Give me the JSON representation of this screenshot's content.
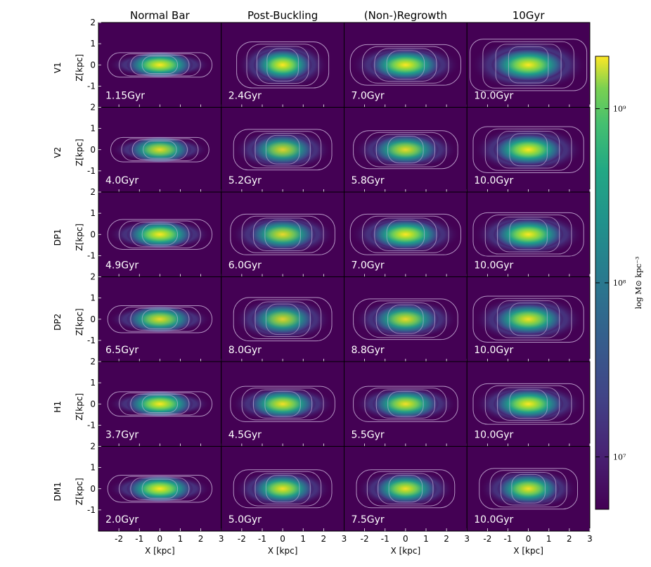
{
  "chart_data": {
    "type": "heatmap",
    "description_of_grid": "6 rows (models) x 4 columns (phases) of edge-on density maps with contours",
    "columns": [
      "Normal Bar",
      "Post-Buckling",
      "(Non-)Regrowth",
      "10Gyr"
    ],
    "rows": [
      {
        "label": "V1",
        "times": [
          "1.15Gyr",
          "2.4Gyr",
          "7.0Gyr",
          "10.0Gyr"
        ]
      },
      {
        "label": "V2",
        "times": [
          "4.0Gyr",
          "5.2Gyr",
          "5.8Gyr",
          "10.0Gyr"
        ]
      },
      {
        "label": "DP1",
        "times": [
          "4.9Gyr",
          "6.0Gyr",
          "7.0Gyr",
          "10.0Gyr"
        ]
      },
      {
        "label": "DP2",
        "times": [
          "6.5Gyr",
          "8.0Gyr",
          "8.8Gyr",
          "10.0Gyr"
        ]
      },
      {
        "label": "H1",
        "times": [
          "3.7Gyr",
          "4.5Gyr",
          "5.5Gyr",
          "10.0Gyr"
        ]
      },
      {
        "label": "DM1",
        "times": [
          "2.0Gyr",
          "5.0Gyr",
          "7.5Gyr",
          "10.0Gyr"
        ]
      }
    ],
    "panel_shapes": [
      [
        {
          "w": 0.85,
          "h": 0.45,
          "peak": 1.0,
          "box": 0.0
        },
        {
          "w": 0.75,
          "h": 0.85,
          "peak": 1.0,
          "box": 0.6
        },
        {
          "w": 0.9,
          "h": 0.75,
          "peak": 1.0,
          "box": 0.3
        },
        {
          "w": 0.95,
          "h": 0.95,
          "peak": 1.0,
          "box": 0.9
        }
      ],
      [
        {
          "w": 0.8,
          "h": 0.45,
          "peak": 0.9,
          "box": 0.0
        },
        {
          "w": 0.8,
          "h": 0.75,
          "peak": 0.85,
          "box": 0.5
        },
        {
          "w": 0.85,
          "h": 0.7,
          "peak": 0.9,
          "box": 0.3
        },
        {
          "w": 0.9,
          "h": 0.85,
          "peak": 1.0,
          "box": 0.7
        }
      ],
      [
        {
          "w": 0.85,
          "h": 0.55,
          "peak": 1.0,
          "box": 0.0
        },
        {
          "w": 0.85,
          "h": 0.75,
          "peak": 0.9,
          "box": 0.4
        },
        {
          "w": 0.9,
          "h": 0.75,
          "peak": 1.0,
          "box": 0.3
        },
        {
          "w": 0.9,
          "h": 0.8,
          "peak": 1.0,
          "box": 0.6
        }
      ],
      [
        {
          "w": 0.85,
          "h": 0.5,
          "peak": 0.9,
          "box": 0.0
        },
        {
          "w": 0.8,
          "h": 0.8,
          "peak": 0.85,
          "box": 0.5
        },
        {
          "w": 0.85,
          "h": 0.75,
          "peak": 0.9,
          "box": 0.3
        },
        {
          "w": 0.9,
          "h": 0.85,
          "peak": 0.95,
          "box": 0.7
        }
      ],
      [
        {
          "w": 0.85,
          "h": 0.45,
          "peak": 1.0,
          "box": 0.0
        },
        {
          "w": 0.85,
          "h": 0.65,
          "peak": 0.95,
          "box": 0.3
        },
        {
          "w": 0.85,
          "h": 0.65,
          "peak": 0.95,
          "box": 0.3
        },
        {
          "w": 0.9,
          "h": 0.75,
          "peak": 1.0,
          "box": 0.5
        }
      ],
      [
        {
          "w": 0.85,
          "h": 0.5,
          "peak": 1.0,
          "box": 0.0
        },
        {
          "w": 0.8,
          "h": 0.7,
          "peak": 0.95,
          "box": 0.4
        },
        {
          "w": 0.8,
          "h": 0.7,
          "peak": 0.95,
          "box": 0.4
        },
        {
          "w": 0.8,
          "h": 0.75,
          "peak": 0.95,
          "box": 0.5
        }
      ]
    ],
    "xlabel": "X [kpc]",
    "ylabel": "Z[kpc]",
    "xlim": [
      -3,
      3
    ],
    "ylim": [
      -2,
      2
    ],
    "xticks": [
      -2,
      -1,
      0,
      1,
      2,
      3
    ],
    "xtick_labels_first": [
      "-2",
      "-1",
      "0",
      "1",
      "2"
    ],
    "xtick_labels_other": [
      "3",
      "-2",
      "-1",
      "0",
      "1",
      "2"
    ],
    "xtick_label_last": "3",
    "yticks": [
      "2",
      "1",
      "0",
      "-1"
    ],
    "yticks_values": [
      2,
      1,
      0,
      -1
    ],
    "colorbar": {
      "label": "log M⊙ kpc⁻³",
      "scale": "log",
      "range": [
        5000000,
        2000000000
      ],
      "ticks": [
        {
          "value": 1000000000,
          "label": "10⁹"
        },
        {
          "value": 100000000,
          "label": "10⁸"
        },
        {
          "value": 10000000,
          "label": "10⁷"
        }
      ],
      "colormap": "viridis"
    },
    "colors": {
      "background": "#440154",
      "contour": "#d9c6e8"
    }
  }
}
